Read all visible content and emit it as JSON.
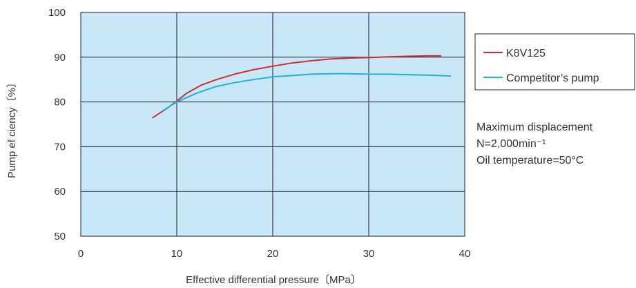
{
  "chart_data": {
    "type": "line",
    "title": "",
    "xlabel": "Effective differential pressure〔MPa〕",
    "ylabel": "Pump ef ciency〔%〕",
    "xlim": [
      0,
      40
    ],
    "ylim": [
      50,
      100
    ],
    "x_ticks": [
      "0",
      "10",
      "20",
      "30",
      "40"
    ],
    "y_ticks": [
      "50",
      "60",
      "70",
      "80",
      "90",
      "100"
    ],
    "grid": true,
    "plot_background": "#c8e8f8",
    "legend_position": "right",
    "series": [
      {
        "name": "K8V125",
        "color": "#d42a2f",
        "points": [
          [
            7.5,
            76.5
          ],
          [
            9,
            78.6
          ],
          [
            10,
            80.2
          ],
          [
            11,
            81.9
          ],
          [
            12.5,
            83.7
          ],
          [
            14,
            84.9
          ],
          [
            16,
            86.2
          ],
          [
            18,
            87.2
          ],
          [
            20,
            88.0
          ],
          [
            22,
            88.7
          ],
          [
            24,
            89.2
          ],
          [
            26,
            89.6
          ],
          [
            28,
            89.8
          ],
          [
            30,
            89.9
          ],
          [
            32,
            90.1
          ],
          [
            34,
            90.2
          ],
          [
            36,
            90.3
          ],
          [
            37.5,
            90.3
          ]
        ]
      },
      {
        "name": "Competitor’s pump",
        "color": "#1fb0e3",
        "points": [
          [
            8.5,
            78.0
          ],
          [
            10,
            80.0
          ],
          [
            12,
            81.9
          ],
          [
            14,
            83.4
          ],
          [
            16,
            84.3
          ],
          [
            18,
            85.0
          ],
          [
            20,
            85.6
          ],
          [
            22,
            85.9
          ],
          [
            24,
            86.2
          ],
          [
            26,
            86.3
          ],
          [
            28,
            86.3
          ],
          [
            30,
            86.2
          ],
          [
            32,
            86.2
          ],
          [
            34,
            86.1
          ],
          [
            36,
            86.0
          ],
          [
            38.5,
            85.8
          ]
        ]
      }
    ],
    "annotations": [
      "Maximum displacement",
      "N=2,000min⁻¹",
      "Oil temperature=50°C"
    ]
  }
}
